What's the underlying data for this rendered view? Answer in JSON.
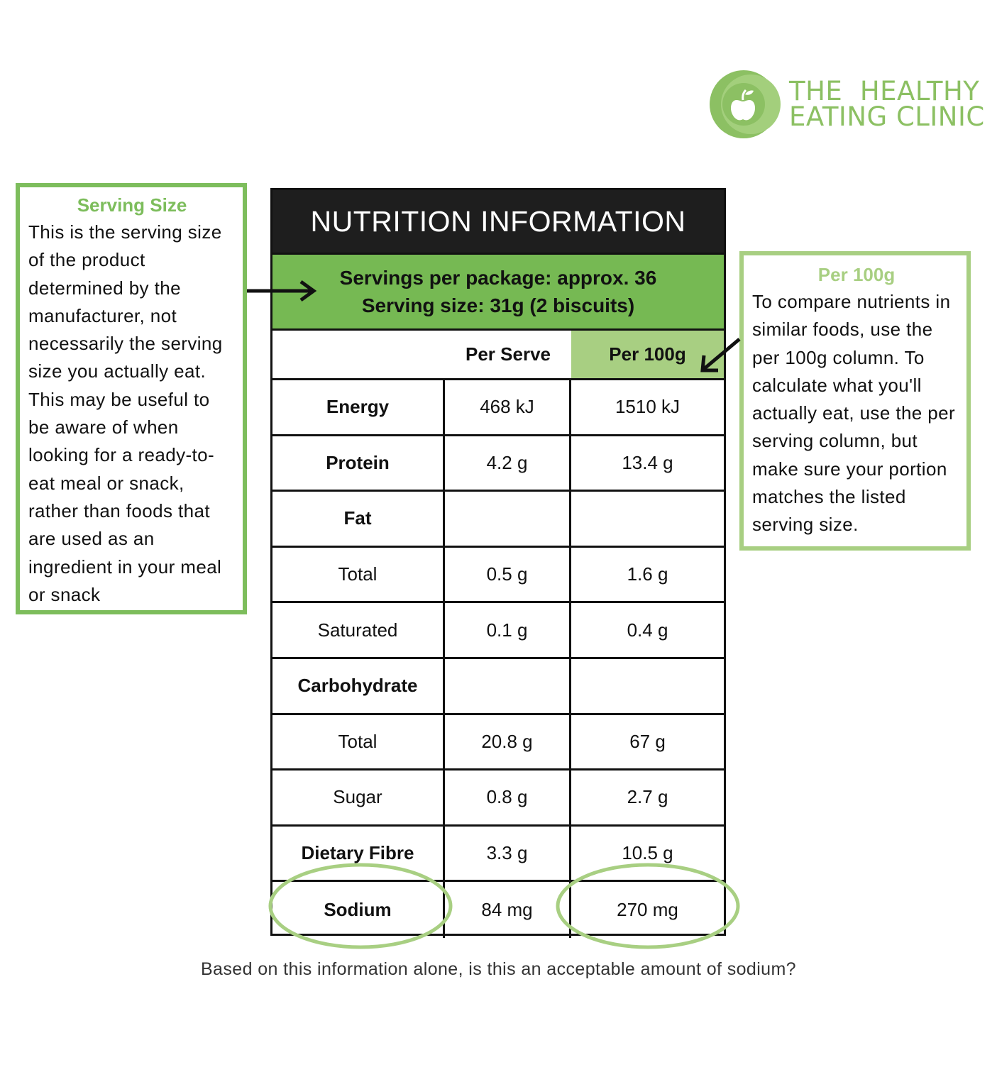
{
  "logo": {
    "line1": "THE  HEALTHY",
    "line2": "EATING CLINIC",
    "icon": "apple-icon",
    "color": "#8cc063"
  },
  "serving_box": {
    "title": "Serving Size",
    "body": "This is the serving size of the product determined by the manufacturer, not necessarily the serving size you actually eat. This may be useful to be aware of when looking for a ready-to-eat meal or snack, rather than foods that are used as an ingredient in your meal or snack"
  },
  "per100_box": {
    "title": "Per 100g",
    "body": "To compare nutrients in similar foods, use the per 100g column. To calculate what you'll actually eat, use the per serving column, but make sure your portion matches the listed serving size."
  },
  "table": {
    "title": "NUTRITION INFORMATION",
    "servings_per_package": "Servings per package: approx. 36",
    "serving_size": "Serving size: 31g (2 biscuits)",
    "col_per_serve": "Per Serve",
    "col_per_100g": "Per 100g",
    "rows": [
      {
        "label": "Energy",
        "serve": "468 kJ",
        "per100": "1510 kJ"
      },
      {
        "label": "Protein",
        "serve": "4.2 g",
        "per100": "13.4 g"
      },
      {
        "label": "Fat",
        "serve": "",
        "per100": ""
      },
      {
        "label": "Total",
        "serve": "0.5 g",
        "per100": "1.6 g"
      },
      {
        "label": "Saturated",
        "serve": "0.1 g",
        "per100": "0.4 g"
      },
      {
        "label": "Carbohydrate",
        "serve": "",
        "per100": ""
      },
      {
        "label": "Total",
        "serve": "20.8 g",
        "per100": "67 g"
      },
      {
        "label": "Sugar",
        "serve": "0.8 g",
        "per100": "2.7 g"
      },
      {
        "label": "Dietary Fibre",
        "serve": "3.3 g",
        "per100": "10.5 g"
      },
      {
        "label": "Sodium",
        "serve": "84 mg",
        "per100": "270 mg"
      }
    ]
  },
  "question": "Based on this information alone, is this an acceptable amount of sodium?",
  "colors": {
    "header_bg": "#1e1e1e",
    "serving_bg": "#76b953",
    "per100_bg": "#a8cf82",
    "box_border_left": "#7dbd5c",
    "box_border_right": "#a8cf82"
  }
}
